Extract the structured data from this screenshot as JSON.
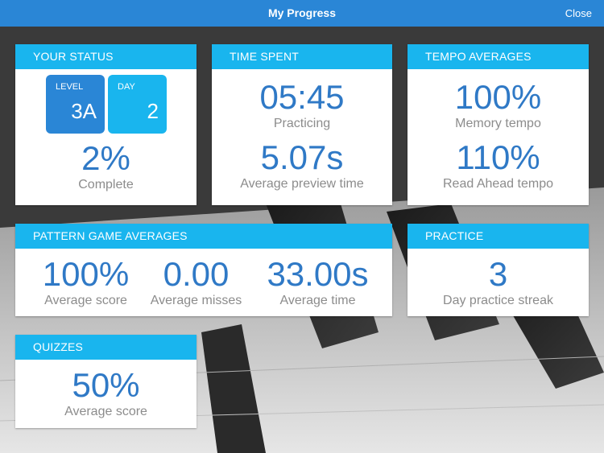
{
  "header": {
    "title": "My Progress",
    "close_label": "Close"
  },
  "status": {
    "title": "YOUR STATUS",
    "level_label": "LEVEL",
    "level_value": "3A",
    "day_label": "DAY",
    "day_value": "2",
    "complete_value": "2%",
    "complete_label": "Complete"
  },
  "time_spent": {
    "title": "TIME SPENT",
    "practicing_value": "05:45",
    "practicing_label": "Practicing",
    "preview_value": "5.07s",
    "preview_label": "Average preview time"
  },
  "tempo": {
    "title": "TEMPO AVERAGES",
    "memory_value": "100%",
    "memory_label": "Memory tempo",
    "readahead_value": "110%",
    "readahead_label": "Read Ahead tempo"
  },
  "pattern": {
    "title": "PATTERN GAME AVERAGES",
    "score_value": "100%",
    "score_label": "Average score",
    "misses_value": "0.00",
    "misses_label": "Average misses",
    "time_value": "33.00s",
    "time_label": "Average time"
  },
  "practice": {
    "title": "PRACTICE",
    "streak_value": "3",
    "streak_label": "Day practice streak"
  },
  "quizzes": {
    "title": "QUIZZES",
    "score_value": "50%",
    "score_label": "Average score"
  },
  "colors": {
    "topbar": "#2a86d6",
    "card_header": "#19b5ee",
    "value_text": "#2f79c6",
    "label_text": "#8c8c8c"
  }
}
